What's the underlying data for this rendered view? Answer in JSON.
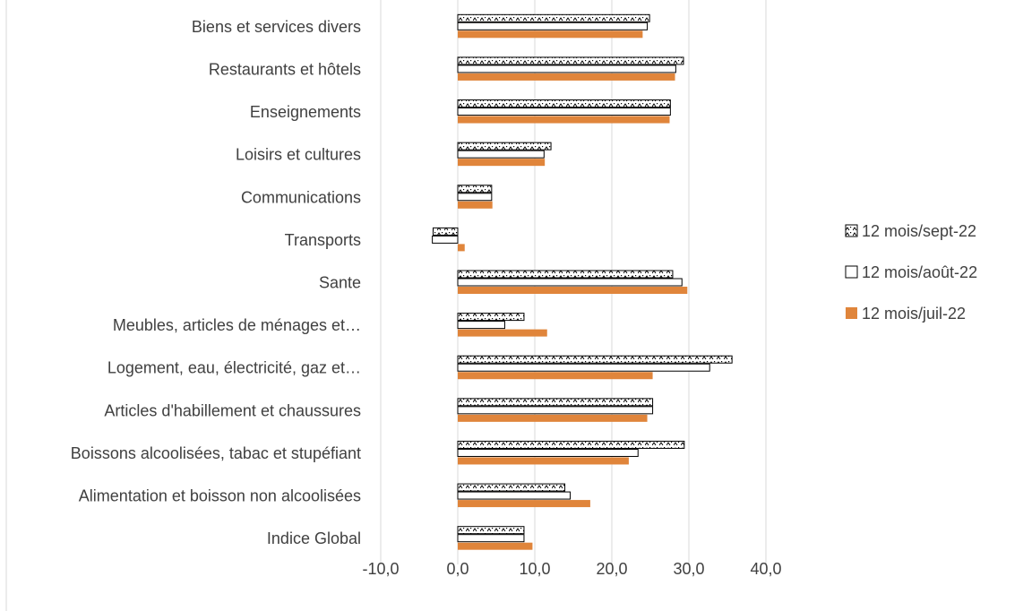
{
  "chart_data": {
    "type": "bar",
    "orientation": "horizontal",
    "categories": [
      "Indice Global",
      "Alimentation et boisson non alcoolisées",
      "Boissons alcoolisées, tabac et stupéfiant",
      "Articles d'habillement et chaussures",
      "Logement, eau, électricité, gaz et…",
      "Meubles, articles de ménages et…",
      "Sante",
      "Transports",
      "Communications",
      "Loisirs et cultures",
      "Enseignements",
      "Restaurants et hôtels",
      "Biens et services divers"
    ],
    "series": [
      {
        "name": "12 mois/sept-22",
        "pattern": "dotted",
        "color": "#000000",
        "values": [
          8.6,
          13.9,
          29.4,
          25.3,
          35.6,
          8.6,
          27.9,
          -3.2,
          4.4,
          12.1,
          27.6,
          29.3,
          24.9
        ]
      },
      {
        "name": "12 mois/août-22",
        "pattern": "outline",
        "color": "#000000",
        "values": [
          8.6,
          14.6,
          23.4,
          25.3,
          32.7,
          6.1,
          29.1,
          -3.3,
          4.4,
          11.2,
          27.6,
          28.3,
          24.6
        ]
      },
      {
        "name": "12 mois/juil-22",
        "pattern": "solid",
        "color": "#E0853B",
        "values": [
          9.7,
          17.2,
          22.2,
          24.6,
          25.3,
          11.6,
          29.8,
          0.9,
          4.5,
          11.3,
          27.5,
          28.2,
          24.0
        ]
      }
    ],
    "xlim": [
      -10,
      40
    ],
    "x_ticks": [
      "-10,0",
      "0,0",
      "10,0",
      "20,0",
      "30,0",
      "40,0"
    ],
    "grid": true,
    "legend_position": "right",
    "title": "",
    "xlabel": "",
    "ylabel": ""
  }
}
